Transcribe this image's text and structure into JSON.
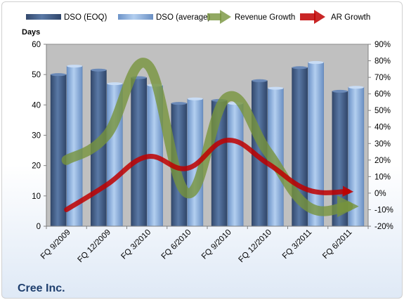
{
  "company": "Cree Inc.",
  "colors": {
    "dso_eoq": "#4a6690",
    "dso_avg": "#8fb3e3",
    "revenue_growth": "#77933c",
    "ar_growth": "#c00000",
    "plot_background": "#c0c0c0"
  },
  "chart_data": {
    "type": "bar",
    "categories": [
      "FQ 9/2009",
      "FQ 12/2009",
      "FQ 3/2010",
      "FQ 6/2010",
      "FQ 9/2010",
      "FQ 12/2010",
      "FQ 3/2011",
      "FQ 6/2011"
    ],
    "y_left": {
      "label": "Days",
      "range": [
        0,
        60
      ],
      "ticks": [
        0,
        10,
        20,
        30,
        40,
        50,
        60
      ]
    },
    "y_right": {
      "range": [
        -20,
        90
      ],
      "ticks": [
        -20,
        -10,
        0,
        10,
        20,
        30,
        40,
        50,
        60,
        70,
        80,
        90
      ],
      "unit": "%"
    },
    "legend_position": "top",
    "grid": false,
    "series": [
      {
        "name": "DSO (EOQ)",
        "kind": "bar",
        "axis": "left",
        "values": [
          50,
          51.5,
          49,
          40.5,
          41.5,
          48,
          52.3,
          44.5
        ]
      },
      {
        "name": "DSO (average)",
        "kind": "bar",
        "axis": "left",
        "values": [
          52.8,
          47,
          46.5,
          42,
          40.5,
          45.5,
          54,
          45.8
        ]
      },
      {
        "name": "Revenue Growth",
        "kind": "line-arrow",
        "axis": "right",
        "values": [
          20,
          35,
          78,
          0,
          58,
          25,
          -8,
          -8
        ]
      },
      {
        "name": "AR Growth",
        "kind": "line-arrow",
        "axis": "right",
        "values": [
          -10,
          5,
          22,
          15,
          32,
          18,
          2,
          1
        ]
      }
    ]
  }
}
